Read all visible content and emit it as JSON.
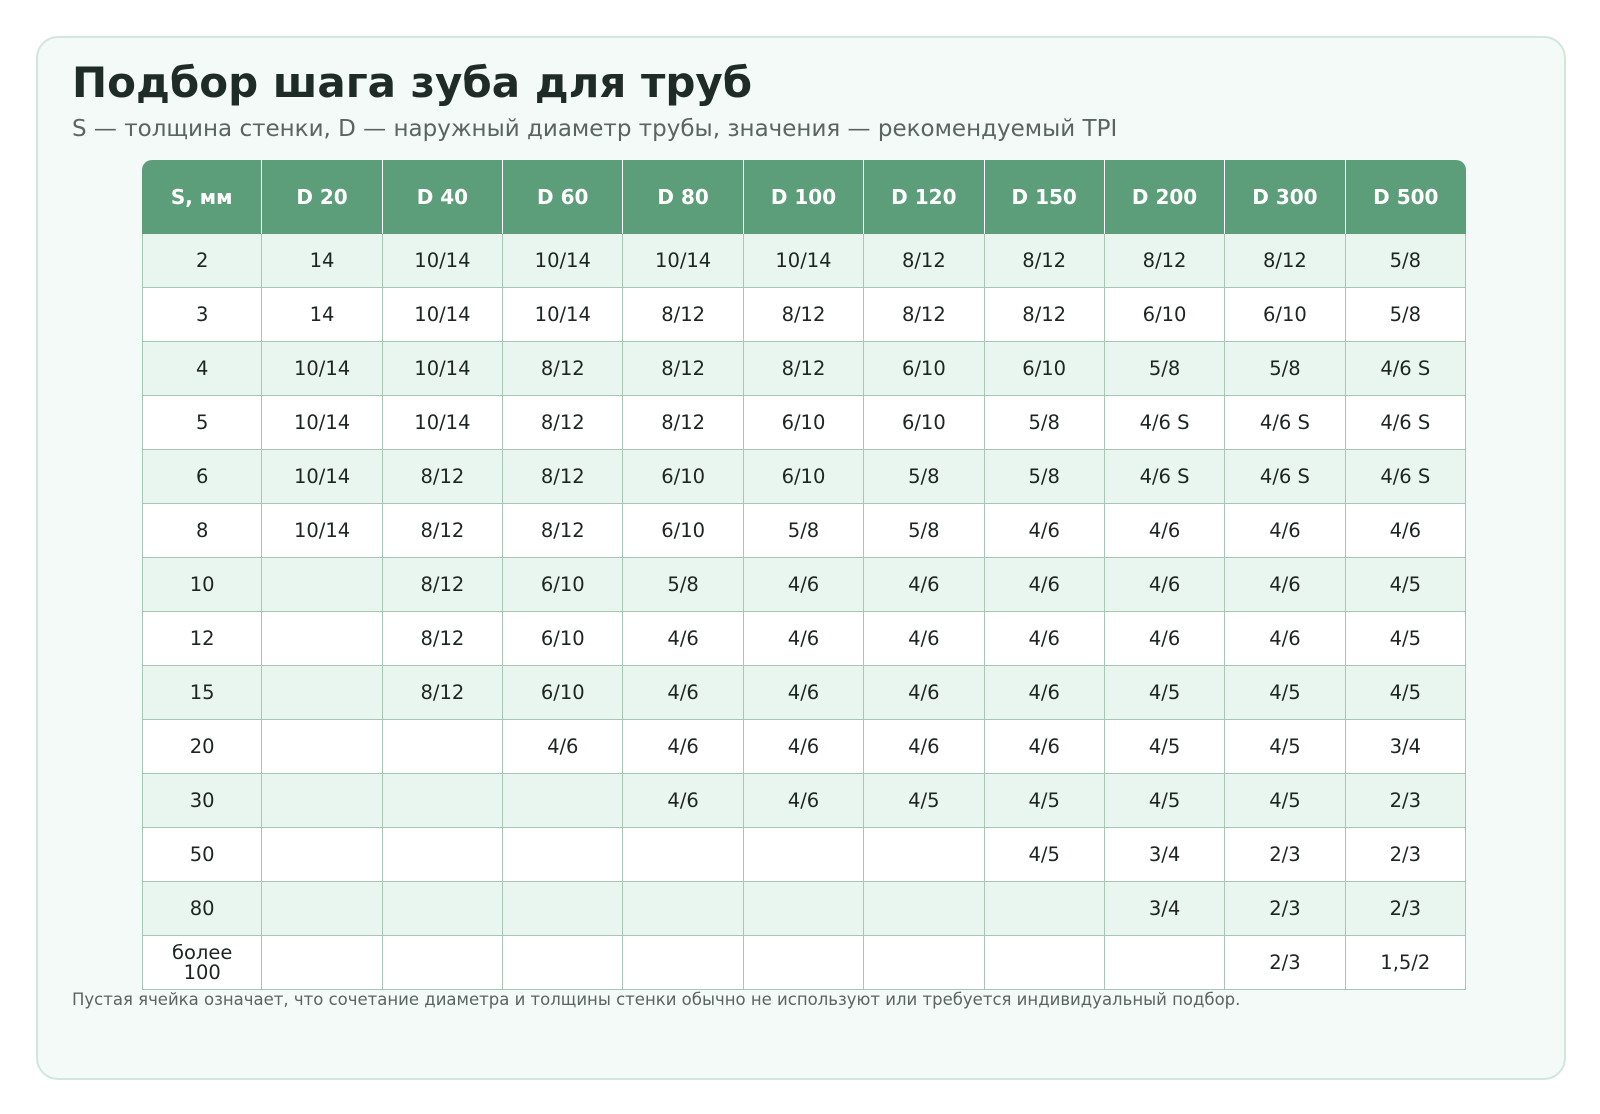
{
  "title": "Подбор шага зуба для труб",
  "subtitle": "S — толщина стенки, D — наружный диаметр трубы, значения — рекомендуемый TPI",
  "table": {
    "headers": [
      "S, мм",
      "D 20",
      "D 40",
      "D 60",
      "D 80",
      "D 100",
      "D 120",
      "D 150",
      "D 200",
      "D 300",
      "D 500"
    ],
    "rows": [
      [
        "2",
        "14",
        "10/14",
        "10/14",
        "10/14",
        "10/14",
        "8/12",
        "8/12",
        "8/12",
        "8/12",
        "5/8"
      ],
      [
        "3",
        "14",
        "10/14",
        "10/14",
        "8/12",
        "8/12",
        "8/12",
        "8/12",
        "6/10",
        "6/10",
        "5/8"
      ],
      [
        "4",
        "10/14",
        "10/14",
        "8/12",
        "8/12",
        "8/12",
        "6/10",
        "6/10",
        "5/8",
        "5/8",
        "4/6 S"
      ],
      [
        "5",
        "10/14",
        "10/14",
        "8/12",
        "8/12",
        "6/10",
        "6/10",
        "5/8",
        "4/6 S",
        "4/6 S",
        "4/6 S"
      ],
      [
        "6",
        "10/14",
        "8/12",
        "8/12",
        "6/10",
        "6/10",
        "5/8",
        "5/8",
        "4/6 S",
        "4/6 S",
        "4/6 S"
      ],
      [
        "8",
        "10/14",
        "8/12",
        "8/12",
        "6/10",
        "5/8",
        "5/8",
        "4/6",
        "4/6",
        "4/6",
        "4/6"
      ],
      [
        "10",
        "",
        "8/12",
        "6/10",
        "5/8",
        "4/6",
        "4/6",
        "4/6",
        "4/6",
        "4/6",
        "4/5"
      ],
      [
        "12",
        "",
        "8/12",
        "6/10",
        "4/6",
        "4/6",
        "4/6",
        "4/6",
        "4/6",
        "4/6",
        "4/5"
      ],
      [
        "15",
        "",
        "8/12",
        "6/10",
        "4/6",
        "4/6",
        "4/6",
        "4/6",
        "4/5",
        "4/5",
        "4/5"
      ],
      [
        "20",
        "",
        "",
        "4/6",
        "4/6",
        "4/6",
        "4/6",
        "4/6",
        "4/5",
        "4/5",
        "3/4"
      ],
      [
        "30",
        "",
        "",
        "",
        "4/6",
        "4/6",
        "4/5",
        "4/5",
        "4/5",
        "4/5",
        "2/3"
      ],
      [
        "50",
        "",
        "",
        "",
        "",
        "",
        "",
        "4/5",
        "3/4",
        "2/3",
        "2/3"
      ],
      [
        "80",
        "",
        "",
        "",
        "",
        "",
        "",
        "",
        "3/4",
        "2/3",
        "2/3"
      ],
      [
        "более\n100",
        "",
        "",
        "",
        "",
        "",
        "",
        "",
        "",
        "2/3",
        "1,5/2"
      ]
    ]
  },
  "note": "Пустая ячейка означает, что сочетание диаметра и толщины стенки обычно не используют или требуется индивидуальный подбор.",
  "colors": {
    "header_bg": "#5c9e79",
    "row_alt_bg": "#e9f6ef",
    "card_bg": "#f4faf7"
  }
}
